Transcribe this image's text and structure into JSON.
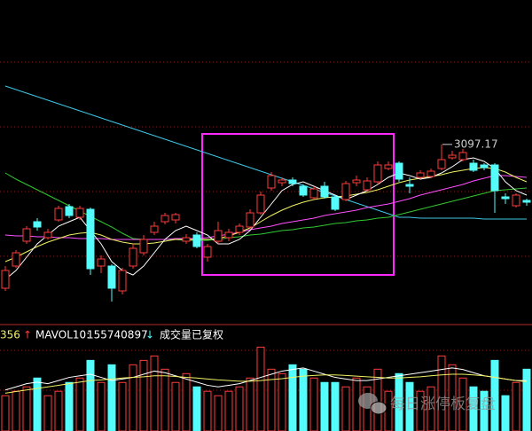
{
  "chart_data": [
    {
      "type": "candlestick",
      "open": [
        2935,
        2960,
        2988,
        3010,
        2992,
        3012,
        3027,
        3015,
        3024,
        2960,
        2960,
        2932,
        2960,
        2975,
        2998,
        3010,
        3012,
        2988,
        2995,
        2970,
        2988,
        2992,
        2998,
        3004,
        3020,
        3048,
        3054,
        3057,
        3050,
        3037,
        3050,
        3038,
        3035,
        3054,
        3046,
        3055,
        3070,
        3076,
        3052,
        3060,
        3061,
        3070,
        3082,
        3080,
        3076,
        3074,
        3074,
        3038,
        3028,
        3034
      ],
      "high": [
        2960,
        2978,
        3005,
        3014,
        3002,
        3028,
        3030,
        3028,
        3026,
        2972,
        2962,
        2958,
        2985,
        2995,
        3010,
        3020,
        3020,
        2996,
        2998,
        2985,
        3010,
        3002,
        3008,
        3024,
        3044,
        3066,
        3060,
        3060,
        3052,
        3050,
        3055,
        3040,
        3056,
        3062,
        3060,
        3078,
        3078,
        3078,
        3060,
        3068,
        3070,
        3097.17,
        3090,
        3092,
        3080,
        3076,
        3076,
        3042,
        3042,
        3036
      ],
      "low": [
        2932,
        2958,
        2985,
        3000,
        2990,
        3010,
        3014,
        3012,
        2950,
        2952,
        2920,
        2928,
        2957,
        2972,
        2995,
        3007,
        3008,
        2985,
        2980,
        2965,
        2985,
        2988,
        2995,
        3002,
        3018,
        3045,
        3050,
        3050,
        3038,
        3035,
        3036,
        3022,
        3033,
        3050,
        3044,
        3052,
        3068,
        3055,
        3042,
        3058,
        3059,
        3068,
        3080,
        3078,
        3066,
        3068,
        3020,
        3030,
        3026,
        3028
      ],
      "close": [
        2955,
        2975,
        3002,
        3004,
        2998,
        3025,
        3017,
        3025,
        2957,
        2968,
        2935,
        2955,
        2980,
        2990,
        3005,
        3017,
        3018,
        2992,
        2982,
        2982,
        3000,
        2998,
        3005,
        3020,
        3040,
        3062,
        3057,
        3053,
        3040,
        3047,
        3038,
        3024,
        3053,
        3057,
        3056,
        3074,
        3074,
        3058,
        3050,
        3065,
        3067,
        3080,
        3085,
        3088,
        3068,
        3071,
        3045,
        3036,
        3040,
        3032
      ],
      "up_color": "#ff3c3c",
      "down_color": "#54fcfc",
      "ylim": [
        2900,
        3260
      ],
      "lines": [
        {
          "color": "#3cc8e6",
          "values": [
            3163,
            3159,
            3155,
            3151,
            3147,
            3143,
            3139,
            3135,
            3131,
            3127,
            3123,
            3119,
            3115,
            3111,
            3107,
            3103,
            3099,
            3095,
            3091,
            3087,
            3083,
            3079,
            3075,
            3071,
            3067,
            3063,
            3059,
            3055,
            3051,
            3047,
            3043,
            3039,
            3035,
            3031,
            3027,
            3023,
            3019,
            3015,
            3015,
            3014,
            3014,
            3014,
            3014,
            3014,
            3014,
            3013,
            3013,
            3013,
            3013,
            3013
          ]
        },
        {
          "color": "#32c832",
          "values": [
            3065,
            3058,
            3052,
            3046,
            3040,
            3034,
            3028,
            3022,
            3016,
            3010,
            3004,
            2997,
            2991,
            2990,
            2990,
            2990,
            2990,
            2989,
            2989,
            2989,
            2990,
            2992,
            2993,
            2995,
            2996,
            2998,
            3000,
            3001,
            3003,
            3004,
            3006,
            3008,
            3009,
            3011,
            3012,
            3014,
            3015,
            3018,
            3021,
            3024,
            3027,
            3030,
            3033,
            3036,
            3039,
            3042,
            3045,
            3046,
            3047,
            3048
          ]
        },
        {
          "color": "#ff50ff",
          "values": [
            2995,
            2994,
            2994,
            2993,
            2993,
            2992,
            2992,
            2991,
            2991,
            2991,
            2990,
            2990,
            2990,
            2990,
            2990,
            2990,
            2991,
            2991,
            2991,
            2992,
            2994,
            2996,
            2998,
            3001,
            3003,
            3005,
            3008,
            3010,
            3012,
            3014,
            3017,
            3019,
            3021,
            3023,
            3026,
            3028,
            3030,
            3033,
            3036,
            3040,
            3043,
            3046,
            3049,
            3052,
            3056,
            3059,
            3062,
            3062,
            3061,
            3060
          ]
        },
        {
          "color": "#f0f064",
          "values": [
            2965,
            2970,
            2976,
            2982,
            2987,
            2991,
            2995,
            2997,
            2998,
            2995,
            2990,
            2987,
            2985,
            2985,
            2986,
            2988,
            2990,
            2990,
            2990,
            2990,
            2991,
            2994,
            2998,
            3003,
            3010,
            3017,
            3023,
            3028,
            3032,
            3035,
            3037,
            3038,
            3039,
            3041,
            3043,
            3046,
            3050,
            3054,
            3057,
            3059,
            3061,
            3063,
            3066,
            3068,
            3070,
            3071,
            3070,
            3066,
            3060,
            3055
          ]
        },
        {
          "color": "#ffffff",
          "values": [
            2945,
            2955,
            2970,
            2985,
            2995,
            3005,
            3010,
            3015,
            3000,
            2985,
            2965,
            2955,
            2950,
            2960,
            2975,
            2990,
            3000,
            3005,
            3000,
            2995,
            2985,
            2985,
            2990,
            3000,
            3015,
            3030,
            3045,
            3052,
            3055,
            3050,
            3045,
            3040,
            3035,
            3040,
            3045,
            3052,
            3060,
            3065,
            3062,
            3058,
            3060,
            3065,
            3072,
            3080,
            3082,
            3078,
            3070,
            3055,
            3045,
            3040
          ]
        }
      ]
    },
    {
      "type": "bar",
      "header_left": "356",
      "mavol_label": "MAVOL10:",
      "mavol_value": 155740897,
      "note": "成交量已复权",
      "values": [
        112000000,
        126000000,
        140000000,
        168000000,
        112000000,
        126000000,
        154000000,
        168000000,
        224000000,
        154000000,
        210000000,
        154000000,
        210000000,
        224000000,
        238000000,
        196000000,
        154000000,
        182000000,
        140000000,
        126000000,
        112000000,
        126000000,
        140000000,
        168000000,
        266000000,
        196000000,
        182000000,
        210000000,
        196000000,
        168000000,
        154000000,
        154000000,
        140000000,
        168000000,
        140000000,
        196000000,
        126000000,
        182000000,
        154000000,
        126000000,
        140000000,
        238000000,
        210000000,
        168000000,
        140000000,
        126000000,
        224000000,
        112000000,
        154000000,
        196000000
      ],
      "ylim": [
        0,
        270000000
      ],
      "lines": [
        {
          "color": "#ffffff",
          "values": [
            130000000,
            140000000,
            150000000,
            155000000,
            150000000,
            160000000,
            170000000,
            175000000,
            180000000,
            170000000,
            160000000,
            165000000,
            170000000,
            180000000,
            190000000,
            185000000,
            175000000,
            165000000,
            155000000,
            145000000,
            140000000,
            145000000,
            150000000,
            160000000,
            170000000,
            180000000,
            190000000,
            195000000,
            200000000,
            190000000,
            180000000,
            170000000,
            165000000,
            160000000,
            160000000,
            165000000,
            170000000,
            175000000,
            180000000,
            185000000,
            190000000,
            195000000,
            200000000,
            195000000,
            185000000,
            175000000,
            170000000,
            165000000,
            160000000,
            160000000
          ]
        },
        {
          "color": "#f0f064",
          "values": [
            120000000,
            125000000,
            130000000,
            135000000,
            140000000,
            145000000,
            150000000,
            155000000,
            160000000,
            162000000,
            165000000,
            168000000,
            170000000,
            172000000,
            175000000,
            175000000,
            173000000,
            170000000,
            168000000,
            165000000,
            162000000,
            160000000,
            158000000,
            158000000,
            160000000,
            163000000,
            166000000,
            170000000,
            174000000,
            176000000,
            178000000,
            178000000,
            176000000,
            174000000,
            172000000,
            170000000,
            168000000,
            168000000,
            170000000,
            172000000,
            175000000,
            178000000,
            180000000,
            180000000,
            178000000,
            175000000,
            170000000,
            165000000,
            160000000,
            156000000
          ]
        }
      ]
    }
  ],
  "watermark": "每日涨停板复盘"
}
